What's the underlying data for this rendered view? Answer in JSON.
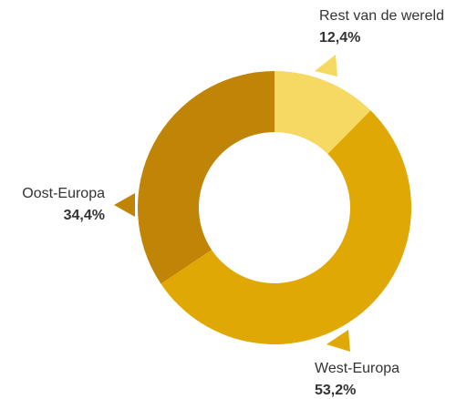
{
  "chart_data": {
    "type": "donut",
    "categories": [
      "Rest van de wereld",
      "West-Europa",
      "Oost-Europa"
    ],
    "values": [
      12.4,
      53.2,
      34.4
    ],
    "value_labels": [
      "12,4%",
      "53,2%",
      "34,4%"
    ],
    "colors": [
      "#f5d962",
      "#e0a805",
      "#c08407"
    ]
  }
}
